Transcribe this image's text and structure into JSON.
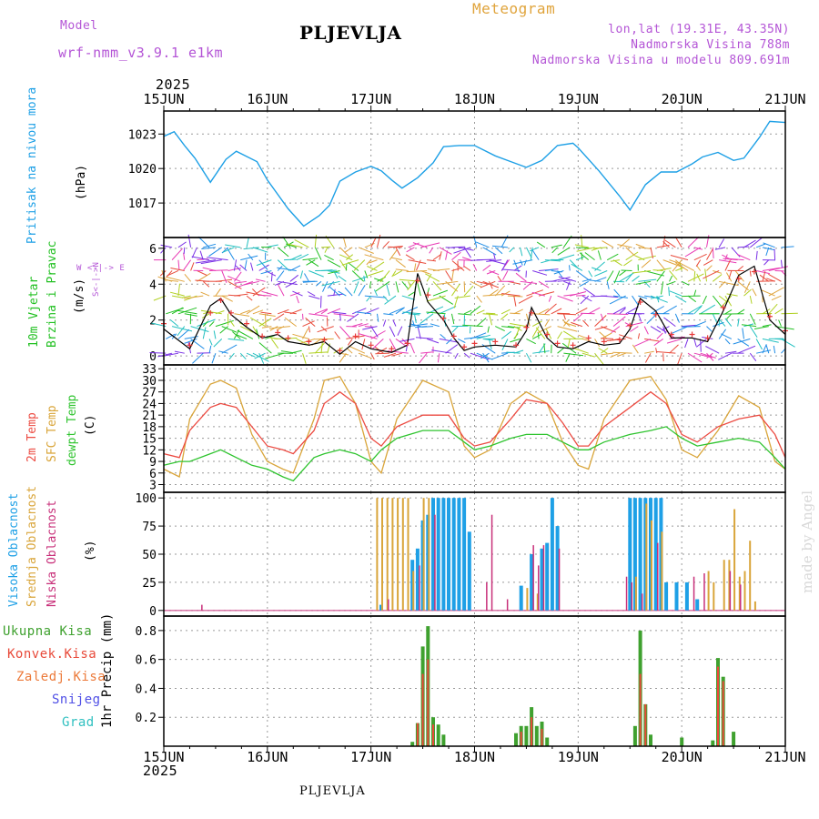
{
  "header": {
    "model_label": "Model",
    "model_name": "wrf-nmm_v3.9.1 e1km",
    "title": "PLJEVLJA",
    "meteogram": "Meteogram",
    "lonlat": "lon,lat (19.31E, 43.35N)",
    "altitude": "Nadmorska Visina 788m",
    "model_altitude": "Nadmorska Visina u modelu 809.691m",
    "bottom_title": "PLJEVLJA",
    "watermark": "made by Angel"
  },
  "colors": {
    "pressure": "#1ea0e6",
    "wind_label": "#22c022",
    "wind_speed": "#000000",
    "wind_gust": "#e83a3a",
    "temp2m": "#ec4b42",
    "sfc_temp": "#d9a53a",
    "dewpt": "#2fc42f",
    "cloud_high": "#1ea0e6",
    "cloud_mid": "#d9a53a",
    "cloud_low": "#c8307a",
    "precip_total": "#3fa12f",
    "precip_conv": "#e84a3a",
    "precip_strat": "#ec7a3a",
    "snow": "#5050e6",
    "hail": "#30c0c0",
    "grid": "#9a9a9a"
  },
  "x_axis": {
    "year": "2025",
    "days": [
      "15JUN",
      "16JUN",
      "17JUN",
      "18JUN",
      "19JUN",
      "20JUN",
      "21JUN"
    ]
  },
  "chart_data": [
    {
      "id": "pressure",
      "type": "line",
      "ylabel_name": "Pritisak na nivou mora",
      "ylabel_unit": "(hPa)",
      "ylim": [
        1014,
        1025
      ],
      "yticks": [
        1017,
        1020,
        1023
      ],
      "x": [
        0,
        0.1,
        0.2,
        0.3,
        0.45,
        0.6,
        0.7,
        0.9,
        1.0,
        1.2,
        1.35,
        1.5,
        1.6,
        1.7,
        1.85,
        2.0,
        2.1,
        2.2,
        2.3,
        2.45,
        2.6,
        2.7,
        2.85,
        3.0,
        3.2,
        3.35,
        3.5,
        3.65,
        3.8,
        3.95,
        4.0,
        4.2,
        4.4,
        4.5,
        4.65,
        4.8,
        4.95,
        5.1,
        5.2,
        5.35,
        5.5,
        5.6,
        5.75,
        5.85,
        6.0
      ],
      "series": [
        {
          "name": "",
          "values": [
            1022.8,
            1023.2,
            1022.0,
            1020.9,
            1018.8,
            1020.8,
            1021.5,
            1020.6,
            1019.0,
            1016.5,
            1015.0,
            1015.9,
            1016.8,
            1018.9,
            1019.7,
            1020.2,
            1019.8,
            1019.0,
            1018.3,
            1019.2,
            1020.5,
            1021.9,
            1022.0,
            1022.0,
            1021.1,
            1020.6,
            1020.1,
            1020.7,
            1022.0,
            1022.2,
            1021.8,
            1019.8,
            1017.6,
            1016.4,
            1018.6,
            1019.7,
            1019.7,
            1020.4,
            1021.0,
            1021.4,
            1020.7,
            1020.9,
            1022.7,
            1024.1,
            1024.0
          ]
        }
      ]
    },
    {
      "id": "wind",
      "type": "line",
      "ylabel_name1": "10m Vjetar",
      "ylabel_name2": "Brzina i Pravac",
      "ylabel_unit": "(m/s)",
      "compass_top": "W <-|-> E",
      "compass_side": "S<-|->N",
      "ylim": [
        -0.5,
        6.6
      ],
      "yticks": [
        0,
        2,
        4,
        6
      ],
      "x": [
        0,
        0.25,
        0.45,
        0.55,
        0.65,
        0.8,
        0.95,
        1.1,
        1.2,
        1.4,
        1.55,
        1.7,
        1.85,
        2.0,
        2.2,
        2.35,
        2.45,
        2.55,
        2.7,
        2.8,
        2.9,
        3.0,
        3.2,
        3.4,
        3.5,
        3.55,
        3.7,
        3.8,
        3.95,
        4.1,
        4.25,
        4.4,
        4.5,
        4.6,
        4.75,
        4.9,
        5.1,
        5.25,
        5.4,
        5.55,
        5.7,
        5.85,
        6.0
      ],
      "series": [
        {
          "name": "Speed",
          "values": [
            1.5,
            0.4,
            2.8,
            3.2,
            2.3,
            1.6,
            1.0,
            1.2,
            0.8,
            0.6,
            0.8,
            0.1,
            0.8,
            0.4,
            0.2,
            0.6,
            4.6,
            3.0,
            2.0,
            1.0,
            0.3,
            0.5,
            0.6,
            0.5,
            1.4,
            2.7,
            1.0,
            0.5,
            0.4,
            0.8,
            0.6,
            0.7,
            1.5,
            3.2,
            2.5,
            1.0,
            1.0,
            0.8,
            2.5,
            4.5,
            5.0,
            2.0,
            1.2
          ]
        },
        {
          "name": "Gust",
          "values": [
            1.8,
            0.6,
            2.4,
            3.1,
            2.4,
            1.8,
            1.1,
            1.3,
            1.0,
            0.8,
            0.9,
            0.3,
            1.1,
            0.6,
            0.4,
            0.7,
            4.2,
            3.4,
            2.1,
            1.1,
            0.5,
            0.7,
            0.8,
            0.6,
            1.6,
            2.4,
            1.2,
            0.7,
            0.6,
            1.0,
            0.8,
            0.9,
            1.7,
            3.0,
            2.3,
            1.2,
            1.2,
            1.0,
            2.7,
            4.3,
            4.7,
            2.2,
            1.4
          ]
        }
      ]
    },
    {
      "id": "temperature",
      "type": "line",
      "ylabel_name1": "2m Temp",
      "ylabel_name2": "SFC Temp",
      "ylabel_name3": "dewpt Temp",
      "ylabel_unit": "(C)",
      "ylim": [
        1,
        34
      ],
      "yticks": [
        3,
        6,
        9,
        12,
        15,
        18,
        21,
        24,
        27,
        30,
        33
      ],
      "x": [
        0,
        0.15,
        0.25,
        0.45,
        0.55,
        0.7,
        0.85,
        1.0,
        1.15,
        1.25,
        1.45,
        1.55,
        1.7,
        1.85,
        2.0,
        2.1,
        2.25,
        2.5,
        2.75,
        2.9,
        3.0,
        3.15,
        3.35,
        3.5,
        3.7,
        3.85,
        4.0,
        4.1,
        4.25,
        4.5,
        4.7,
        4.85,
        5.0,
        5.15,
        5.35,
        5.55,
        5.75,
        5.9,
        6.0
      ],
      "series": [
        {
          "name": "2m Temp",
          "values": [
            11,
            10,
            17,
            23,
            24,
            23,
            18,
            13,
            12,
            11,
            17,
            24,
            27,
            24,
            15,
            13,
            18,
            21,
            21,
            15,
            13,
            14,
            20,
            25,
            24,
            19,
            13,
            13,
            18,
            23,
            27,
            24,
            16,
            14,
            18,
            20,
            21,
            16,
            10
          ]
        },
        {
          "name": "SFC Temp",
          "values": [
            7,
            5,
            20,
            29,
            30,
            28,
            16,
            9,
            7,
            6,
            20,
            30,
            31,
            24,
            9,
            6,
            20,
            30,
            27,
            13,
            10,
            12,
            24,
            27,
            24,
            14,
            8,
            7,
            20,
            30,
            31,
            25,
            12,
            10,
            17,
            26,
            23,
            9,
            7
          ]
        },
        {
          "name": "dewpt Temp",
          "values": [
            8,
            9,
            9,
            11,
            12,
            10,
            8,
            7,
            5,
            4,
            10,
            11,
            12,
            11,
            9,
            12,
            15,
            17,
            17,
            14,
            12,
            13,
            15,
            16,
            16,
            14,
            12,
            12,
            14,
            16,
            17,
            18,
            15,
            13,
            14,
            15,
            14,
            10,
            7
          ]
        }
      ]
    },
    {
      "id": "clouds",
      "type": "bar",
      "ylabel_name1": "Visoka Oblacnost",
      "ylabel_name2": "Srednja Oblacnost",
      "ylabel_name3": "Niska Oblacnost",
      "ylabel_unit": "(%)",
      "ylim": [
        -5,
        105
      ],
      "yticks": [
        0,
        25,
        50,
        75,
        100
      ],
      "series": [
        {
          "name": "Visoka",
          "points": [
            [
              2.1,
              5
            ],
            [
              2.4,
              45
            ],
            [
              2.45,
              55
            ],
            [
              2.5,
              80
            ],
            [
              2.55,
              85
            ],
            [
              2.6,
              100
            ],
            [
              2.65,
              100
            ],
            [
              2.7,
              100
            ],
            [
              2.75,
              100
            ],
            [
              2.8,
              100
            ],
            [
              2.85,
              100
            ],
            [
              2.9,
              100
            ],
            [
              2.95,
              70
            ],
            [
              3.45,
              22
            ],
            [
              3.55,
              50
            ],
            [
              3.65,
              55
            ],
            [
              3.7,
              60
            ],
            [
              3.75,
              100
            ],
            [
              3.8,
              75
            ],
            [
              4.5,
              100
            ],
            [
              4.55,
              100
            ],
            [
              4.6,
              100
            ],
            [
              4.65,
              100
            ],
            [
              4.7,
              100
            ],
            [
              4.75,
              100
            ],
            [
              4.8,
              100
            ],
            [
              4.85,
              25
            ],
            [
              4.95,
              25
            ],
            [
              5.05,
              25
            ],
            [
              5.15,
              10
            ]
          ]
        },
        {
          "name": "Srednja",
          "points": [
            [
              2.05,
              100
            ],
            [
              2.1,
              100
            ],
            [
              2.15,
              100
            ],
            [
              2.2,
              100
            ],
            [
              2.25,
              100
            ],
            [
              2.3,
              100
            ],
            [
              2.35,
              100
            ],
            [
              2.4,
              35
            ],
            [
              2.5,
              100
            ],
            [
              2.55,
              100
            ],
            [
              3.5,
              20
            ],
            [
              3.6,
              15
            ],
            [
              4.55,
              30
            ],
            [
              4.65,
              95
            ],
            [
              4.7,
              80
            ],
            [
              4.8,
              70
            ],
            [
              5.25,
              35
            ],
            [
              5.3,
              25
            ],
            [
              5.4,
              45
            ],
            [
              5.45,
              45
            ],
            [
              5.5,
              90
            ],
            [
              5.55,
              30
            ],
            [
              5.6,
              35
            ],
            [
              5.65,
              62
            ],
            [
              5.7,
              8
            ]
          ]
        },
        {
          "name": "Niska",
          "points": [
            [
              0.35,
              5
            ],
            [
              2.15,
              10
            ],
            [
              2.45,
              40
            ],
            [
              2.6,
              85
            ],
            [
              3.1,
              25
            ],
            [
              3.15,
              85
            ],
            [
              3.3,
              10
            ],
            [
              3.55,
              58
            ],
            [
              3.6,
              40
            ],
            [
              3.65,
              58
            ],
            [
              3.8,
              55
            ],
            [
              4.45,
              30
            ],
            [
              4.5,
              25
            ],
            [
              4.6,
              15
            ],
            [
              4.75,
              60
            ],
            [
              5.1,
              30
            ],
            [
              5.2,
              33
            ],
            [
              5.45,
              35
            ],
            [
              5.55,
              23
            ]
          ]
        }
      ]
    },
    {
      "id": "precipitation",
      "type": "bar",
      "ylabel": "1hr Precip (mm)",
      "legend": [
        "Ukupna Kisa",
        "Konvek.Kisa",
        "Zaledj.Kisa",
        "Snijeg",
        "Grad"
      ],
      "ylim": [
        0,
        0.9
      ],
      "yticks": [
        0.2,
        0.4,
        0.6,
        0.8
      ],
      "series": [
        {
          "name": "Ukupna Kisa",
          "points": [
            [
              2.4,
              0.03
            ],
            [
              2.45,
              0.16
            ],
            [
              2.5,
              0.69
            ],
            [
              2.55,
              0.83
            ],
            [
              2.6,
              0.2
            ],
            [
              2.65,
              0.15
            ],
            [
              2.7,
              0.08
            ],
            [
              3.4,
              0.09
            ],
            [
              3.45,
              0.14
            ],
            [
              3.5,
              0.14
            ],
            [
              3.55,
              0.27
            ],
            [
              3.6,
              0.14
            ],
            [
              3.65,
              0.17
            ],
            [
              3.7,
              0.06
            ],
            [
              4.55,
              0.14
            ],
            [
              4.6,
              0.8
            ],
            [
              4.65,
              0.29
            ],
            [
              4.7,
              0.08
            ],
            [
              5.0,
              0.06
            ],
            [
              5.3,
              0.04
            ],
            [
              5.35,
              0.61
            ],
            [
              5.4,
              0.48
            ],
            [
              5.5,
              0.1
            ]
          ]
        },
        {
          "name": "Konvek.Kisa",
          "points": [
            [
              2.45,
              0.16
            ],
            [
              2.5,
              0.5
            ],
            [
              2.55,
              0.6
            ],
            [
              2.6,
              0.15
            ],
            [
              3.45,
              0.1
            ],
            [
              3.55,
              0.2
            ],
            [
              3.65,
              0.12
            ],
            [
              4.6,
              0.5
            ],
            [
              4.65,
              0.29
            ],
            [
              5.35,
              0.55
            ],
            [
              5.4,
              0.45
            ]
          ]
        }
      ]
    }
  ]
}
